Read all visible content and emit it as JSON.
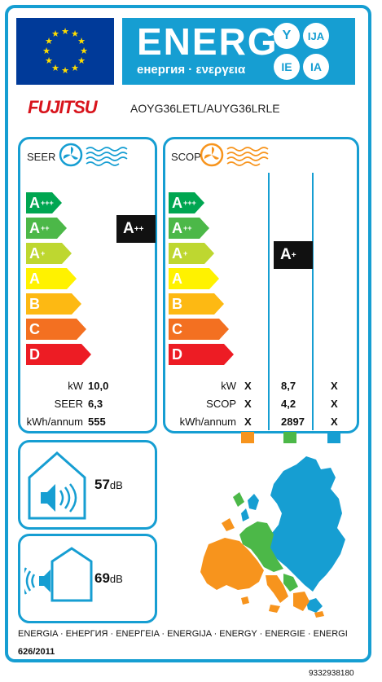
{
  "header": {
    "title": "ENERG",
    "subtitle": "енергия · ενεργεια",
    "lang_codes": [
      "Y",
      "IJA",
      "IE",
      "IA"
    ]
  },
  "supplier": {
    "brand": "FUJITSU",
    "model": "AOYG36LETL/AUYG36LRLE"
  },
  "cooling": {
    "label": "SEER",
    "classes": [
      {
        "letter": "A",
        "sup": "+++",
        "color": "#00a651"
      },
      {
        "letter": "A",
        "sup": "++",
        "color": "#4cb848"
      },
      {
        "letter": "A",
        "sup": "+",
        "color": "#bed730"
      },
      {
        "letter": "A",
        "sup": "",
        "color": "#fff200"
      },
      {
        "letter": "B",
        "sup": "",
        "color": "#fdb913"
      },
      {
        "letter": "C",
        "sup": "",
        "color": "#f37021"
      },
      {
        "letter": "D",
        "sup": "",
        "color": "#ed1c24"
      }
    ],
    "rating": {
      "letter": "A",
      "sup": "++"
    },
    "rows": [
      {
        "label": "kW",
        "value": "10,0"
      },
      {
        "label": "SEER",
        "value": "6,3"
      },
      {
        "label": "kWh/annum",
        "value": "555"
      }
    ]
  },
  "heating": {
    "label": "SCOP",
    "rating": {
      "letter": "A",
      "sup": "+"
    },
    "rows": [
      {
        "label": "kW",
        "warm": "X",
        "average": "8,7",
        "cold": "X"
      },
      {
        "label": "SCOP",
        "warm": "X",
        "average": "4,2",
        "cold": "X"
      },
      {
        "label": "kWh/annum",
        "warm": "X",
        "average": "2897",
        "cold": "X"
      }
    ],
    "zone_colors": [
      "#f7941d",
      "#4cb848",
      "#169ed2"
    ]
  },
  "noise": {
    "indoor": {
      "value": "57",
      "unit": "dB"
    },
    "outdoor": {
      "value": "69",
      "unit": "dB"
    }
  },
  "footer": {
    "languages": "ENERGIA · ЕНЕРГИЯ · ΕΝΕΡΓΕΙΑ · ENERGIJA · ENERGY · ENERGIE · ENERGI",
    "regulation": "626/2011",
    "code": "9332938180"
  }
}
